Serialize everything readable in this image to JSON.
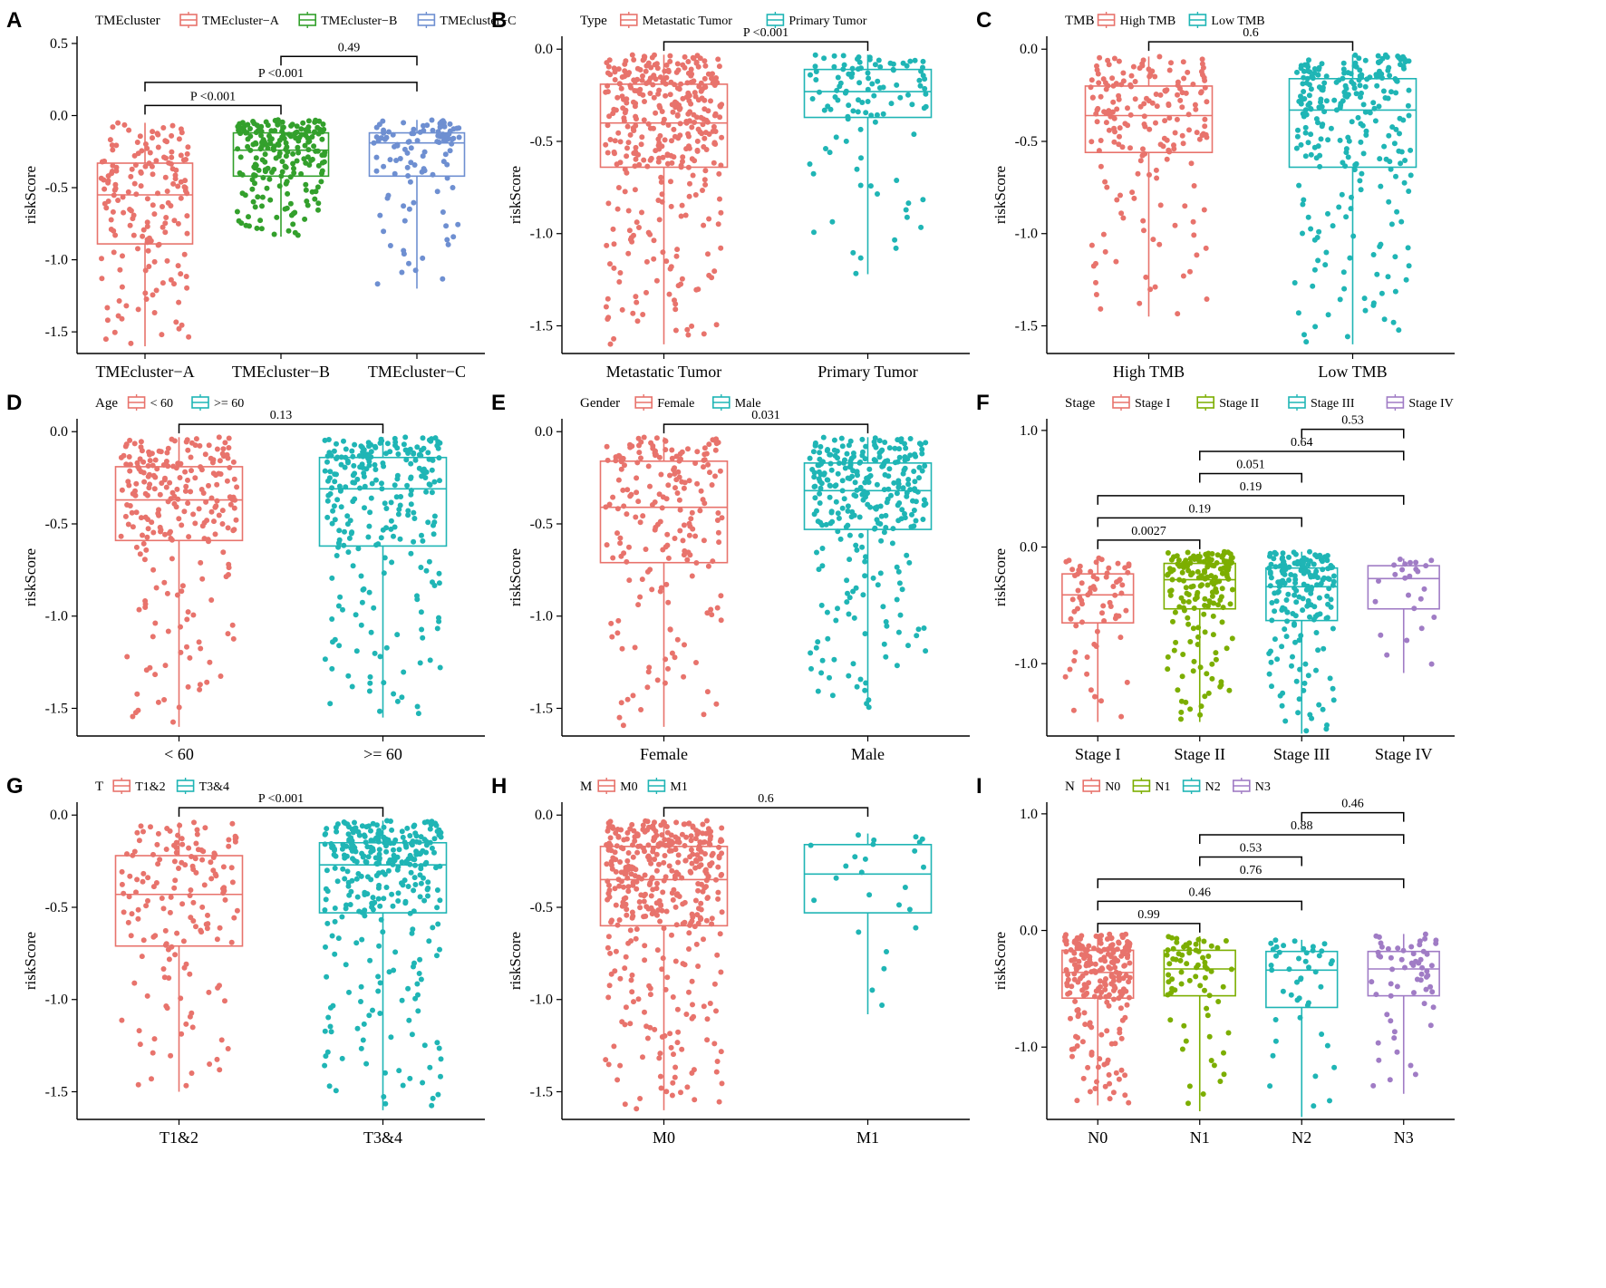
{
  "colors": {
    "red": "#e8736c",
    "green": "#33a02c",
    "blue": "#6e8fd1",
    "teal": "#1fb5b5",
    "olive": "#7cae00",
    "purple": "#a07cc5"
  },
  "y_axis_title": "riskScore",
  "chart_data": [
    {
      "letter": "A",
      "type": "box",
      "legend_title": "TMEcluster",
      "ylabel": "riskScore",
      "ylim": [
        -1.65,
        0.55
      ],
      "yticks": [
        0.5,
        0.0,
        -0.5,
        -1.0,
        -1.5
      ],
      "ytick_labels": [
        "0.5",
        "0.0",
        "-0.5",
        "-1.0",
        "-1.5"
      ],
      "categories": [
        "TMEcluster−A",
        "TMEcluster−B",
        "TMEcluster−C"
      ],
      "legend_labels": [
        "TMEcluster−A",
        "TMEcluster−B",
        "TMEcluster−C"
      ],
      "colors": [
        "red",
        "green",
        "blue"
      ],
      "boxes": [
        {
          "q1": -0.89,
          "median": -0.55,
          "q3": -0.33,
          "min": -1.6,
          "max": -0.05,
          "n": 170
        },
        {
          "q1": -0.42,
          "median": -0.24,
          "q3": -0.12,
          "min": -0.84,
          "max": -0.03,
          "n": 210
        },
        {
          "q1": -0.42,
          "median": -0.19,
          "q3": -0.12,
          "min": -1.2,
          "max": -0.03,
          "n": 110
        }
      ],
      "comparisons": [
        {
          "a": 0,
          "b": 1,
          "label": "P <0.001",
          "y": 0.07
        },
        {
          "a": 0,
          "b": 2,
          "label": "P <0.001",
          "y": 0.23
        },
        {
          "a": 1,
          "b": 2,
          "label": "0.49",
          "y": 0.41
        }
      ]
    },
    {
      "letter": "B",
      "type": "box",
      "legend_title": "Type",
      "ylabel": "riskScore",
      "ylim": [
        -1.65,
        0.07
      ],
      "yticks": [
        0.0,
        -0.5,
        -1.0,
        -1.5
      ],
      "ytick_labels": [
        "0.0",
        "-0.5",
        "-1.0",
        "-1.5"
      ],
      "categories": [
        "Metastatic Tumor",
        "Primary Tumor"
      ],
      "legend_labels": [
        "Metastatic Tumor",
        "Primary Tumor"
      ],
      "colors": [
        "red",
        "teal"
      ],
      "boxes": [
        {
          "q1": -0.64,
          "median": -0.4,
          "q3": -0.19,
          "min": -1.6,
          "max": -0.03,
          "n": 380
        },
        {
          "q1": -0.37,
          "median": -0.23,
          "q3": -0.11,
          "min": -1.22,
          "max": -0.03,
          "n": 110
        }
      ],
      "comparisons": [
        {
          "a": 0,
          "b": 1,
          "label": "P <0.001",
          "y": 0.04
        }
      ]
    },
    {
      "letter": "C",
      "type": "box",
      "legend_title": "TMB",
      "ylabel": "riskScore",
      "ylim": [
        -1.65,
        0.07
      ],
      "yticks": [
        0.0,
        -0.5,
        -1.0,
        -1.5
      ],
      "ytick_labels": [
        "0.0",
        "-0.5",
        "-1.0",
        "-1.5"
      ],
      "categories": [
        "High TMB",
        "Low TMB"
      ],
      "legend_labels": [
        "High TMB",
        "Low TMB"
      ],
      "colors": [
        "red",
        "teal"
      ],
      "boxes": [
        {
          "q1": -0.56,
          "median": -0.36,
          "q3": -0.2,
          "min": -1.45,
          "max": -0.04,
          "n": 190
        },
        {
          "q1": -0.64,
          "median": -0.33,
          "q3": -0.16,
          "min": -1.6,
          "max": -0.03,
          "n": 260
        }
      ],
      "comparisons": [
        {
          "a": 0,
          "b": 1,
          "label": "0.6",
          "y": 0.04
        }
      ]
    },
    {
      "letter": "D",
      "type": "box",
      "legend_title": "Age",
      "ylabel": "riskScore",
      "ylim": [
        -1.65,
        0.07
      ],
      "yticks": [
        0.0,
        -0.5,
        -1.0,
        -1.5
      ],
      "ytick_labels": [
        "0.0",
        "-0.5",
        "-1.0",
        "-1.5"
      ],
      "categories": [
        "< 60",
        ">= 60"
      ],
      "legend_labels": [
        "< 60",
        ">= 60"
      ],
      "colors": [
        "red",
        "teal"
      ],
      "boxes": [
        {
          "q1": -0.59,
          "median": -0.37,
          "q3": -0.19,
          "min": -1.6,
          "max": -0.03,
          "n": 240
        },
        {
          "q1": -0.62,
          "median": -0.31,
          "q3": -0.14,
          "min": -1.55,
          "max": -0.03,
          "n": 260
        }
      ],
      "comparisons": [
        {
          "a": 0,
          "b": 1,
          "label": "0.13",
          "y": 0.04
        }
      ]
    },
    {
      "letter": "E",
      "type": "box",
      "legend_title": "Gender",
      "ylabel": "riskScore",
      "ylim": [
        -1.65,
        0.07
      ],
      "yticks": [
        0.0,
        -0.5,
        -1.0,
        -1.5
      ],
      "ytick_labels": [
        "0.0",
        "-0.5",
        "-1.0",
        "-1.5"
      ],
      "categories": [
        "Female",
        "Male"
      ],
      "legend_labels": [
        "Female",
        "Male"
      ],
      "colors": [
        "red",
        "teal"
      ],
      "boxes": [
        {
          "q1": -0.71,
          "median": -0.41,
          "q3": -0.16,
          "min": -1.6,
          "max": -0.03,
          "n": 200
        },
        {
          "q1": -0.53,
          "median": -0.32,
          "q3": -0.17,
          "min": -1.5,
          "max": -0.03,
          "n": 300
        }
      ],
      "comparisons": [
        {
          "a": 0,
          "b": 1,
          "label": "0.031",
          "y": 0.04
        }
      ]
    },
    {
      "letter": "F",
      "type": "box",
      "legend_title": "Stage",
      "ylabel": "riskScore",
      "ylim": [
        -1.62,
        1.1
      ],
      "yticks": [
        1.0,
        0.0,
        -1.0
      ],
      "ytick_labels": [
        "1.0",
        "0.0",
        "-1.0"
      ],
      "categories": [
        "Stage I",
        "Stage II",
        "Stage III",
        "Stage IV"
      ],
      "legend_labels": [
        "Stage I",
        "Stage II",
        "Stage III",
        "Stage IV"
      ],
      "colors": [
        "red",
        "olive",
        "teal",
        "purple"
      ],
      "boxes": [
        {
          "q1": -0.65,
          "median": -0.41,
          "q3": -0.23,
          "min": -1.5,
          "max": -0.09,
          "n": 70
        },
        {
          "q1": -0.53,
          "median": -0.28,
          "q3": -0.14,
          "min": -1.5,
          "max": -0.04,
          "n": 180
        },
        {
          "q1": -0.63,
          "median": -0.34,
          "q3": -0.18,
          "min": -1.6,
          "max": -0.04,
          "n": 180
        },
        {
          "q1": -0.53,
          "median": -0.27,
          "q3": -0.16,
          "min": -1.08,
          "max": -0.1,
          "n": 25
        }
      ],
      "comparisons": [
        {
          "a": 0,
          "b": 1,
          "label": "0.0027",
          "y": 0.06
        },
        {
          "a": 0,
          "b": 2,
          "label": "0.19",
          "y": 0.25
        },
        {
          "a": 0,
          "b": 3,
          "label": "0.19",
          "y": 0.44
        },
        {
          "a": 1,
          "b": 2,
          "label": "0.051",
          "y": 0.63
        },
        {
          "a": 1,
          "b": 3,
          "label": "0.64",
          "y": 0.82
        },
        {
          "a": 2,
          "b": 3,
          "label": "0.53",
          "y": 1.01
        }
      ]
    },
    {
      "letter": "G",
      "type": "box",
      "legend_title": "T",
      "ylabel": "riskScore",
      "ylim": [
        -1.65,
        0.07
      ],
      "yticks": [
        0.0,
        -0.5,
        -1.0,
        -1.5
      ],
      "ytick_labels": [
        "0.0",
        "-0.5",
        "-1.0",
        "-1.5"
      ],
      "categories": [
        "T1&2",
        "T3&4"
      ],
      "legend_labels": [
        "T1&2",
        "T3&4"
      ],
      "colors": [
        "red",
        "teal"
      ],
      "boxes": [
        {
          "q1": -0.71,
          "median": -0.43,
          "q3": -0.22,
          "min": -1.5,
          "max": -0.04,
          "n": 160
        },
        {
          "q1": -0.53,
          "median": -0.27,
          "q3": -0.15,
          "min": -1.6,
          "max": -0.03,
          "n": 330
        }
      ],
      "comparisons": [
        {
          "a": 0,
          "b": 1,
          "label": "P <0.001",
          "y": 0.04
        }
      ]
    },
    {
      "letter": "H",
      "type": "box",
      "legend_title": "M",
      "ylabel": "riskScore",
      "ylim": [
        -1.65,
        0.07
      ],
      "yticks": [
        0.0,
        -0.5,
        -1.0,
        -1.5
      ],
      "ytick_labels": [
        "0.0",
        "-0.5",
        "-1.0",
        "-1.5"
      ],
      "categories": [
        "M0",
        "M1"
      ],
      "legend_labels": [
        "M0",
        "M1"
      ],
      "colors": [
        "red",
        "teal"
      ],
      "boxes": [
        {
          "q1": -0.6,
          "median": -0.35,
          "q3": -0.17,
          "min": -1.6,
          "max": -0.03,
          "n": 420
        },
        {
          "q1": -0.53,
          "median": -0.32,
          "q3": -0.16,
          "min": -1.08,
          "max": -0.1,
          "n": 25
        }
      ],
      "comparisons": [
        {
          "a": 0,
          "b": 1,
          "label": "0.6",
          "y": 0.04
        }
      ]
    },
    {
      "letter": "I",
      "type": "box",
      "legend_title": "N",
      "ylabel": "riskScore",
      "ylim": [
        -1.62,
        1.1
      ],
      "yticks": [
        1.0,
        0.0,
        -1.0
      ],
      "ytick_labels": [
        "1.0",
        "0.0",
        "-1.0"
      ],
      "categories": [
        "N0",
        "N1",
        "N2",
        "N3"
      ],
      "legend_labels": [
        "N0",
        "N1",
        "N2",
        "N3"
      ],
      "colors": [
        "red",
        "olive",
        "teal",
        "purple"
      ],
      "boxes": [
        {
          "q1": -0.58,
          "median": -0.36,
          "q3": -0.17,
          "min": -1.5,
          "max": -0.03,
          "n": 230
        },
        {
          "q1": -0.56,
          "median": -0.33,
          "q3": -0.17,
          "min": -1.55,
          "max": -0.05,
          "n": 70
        },
        {
          "q1": -0.66,
          "median": -0.34,
          "q3": -0.18,
          "min": -1.6,
          "max": -0.08,
          "n": 45
        },
        {
          "q1": -0.56,
          "median": -0.33,
          "q3": -0.18,
          "min": -1.4,
          "max": -0.03,
          "n": 60
        }
      ],
      "comparisons": [
        {
          "a": 0,
          "b": 1,
          "label": "0.99",
          "y": 0.06
        },
        {
          "a": 0,
          "b": 2,
          "label": "0.46",
          "y": 0.25
        },
        {
          "a": 0,
          "b": 3,
          "label": "0.76",
          "y": 0.44
        },
        {
          "a": 1,
          "b": 2,
          "label": "0.53",
          "y": 0.63
        },
        {
          "a": 1,
          "b": 3,
          "label": "0.88",
          "y": 0.82
        },
        {
          "a": 2,
          "b": 3,
          "label": "0.46",
          "y": 1.01
        }
      ]
    }
  ]
}
